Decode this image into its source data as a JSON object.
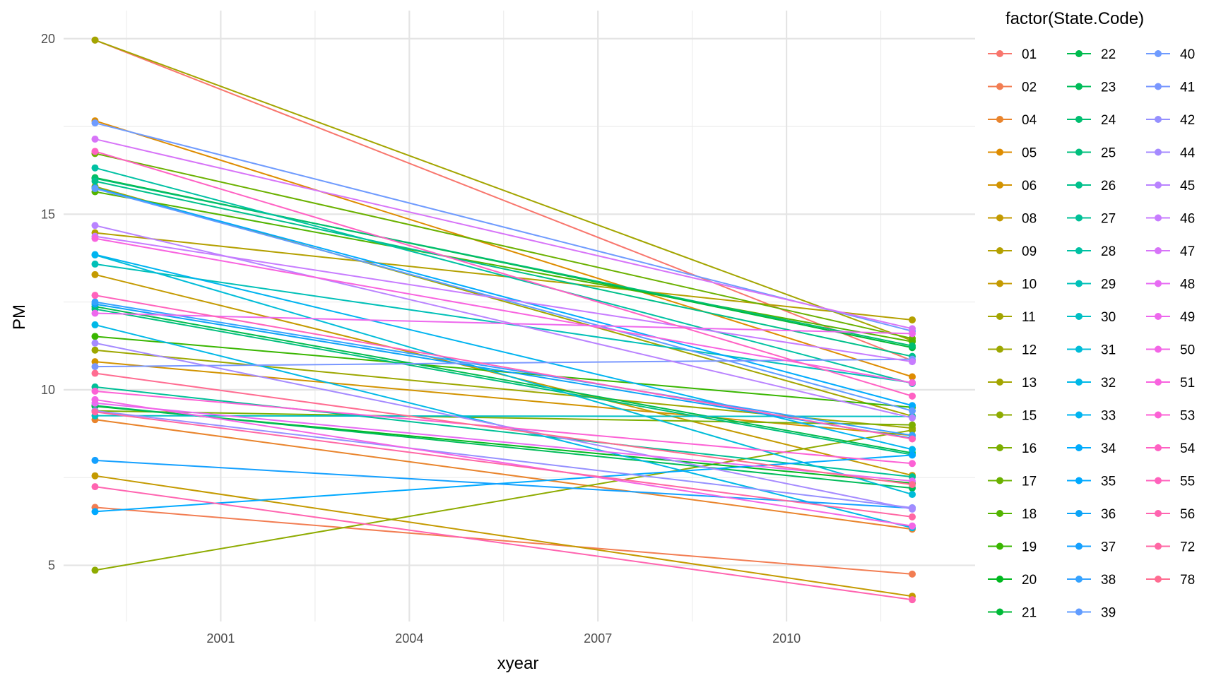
{
  "chart_data": {
    "type": "line",
    "xlabel": "xyear",
    "ylabel": "PM",
    "legend_title": "factor(State.Code)",
    "legend_position": "right",
    "grid": true,
    "xlim": [
      1998.5,
      2013.0
    ],
    "ylim": [
      3.4,
      20.8
    ],
    "x_ticks": [
      2001,
      2004,
      2007,
      2010
    ],
    "x_tick_labels": [
      "2001",
      "2004",
      "2007",
      "2010"
    ],
    "y_ticks": [
      5,
      10,
      15,
      20
    ],
    "y_tick_labels": [
      "5",
      "10",
      "15",
      "20"
    ],
    "x": [
      1999,
      2012
    ],
    "series": [
      {
        "name": "01",
        "color": "#F8766D",
        "values": [
          19.96,
          10.83
        ]
      },
      {
        "name": "02",
        "color": "#F27D52",
        "values": [
          6.65,
          4.75
        ]
      },
      {
        "name": "04",
        "color": "#E9842C",
        "values": [
          9.15,
          6.03
        ]
      },
      {
        "name": "05",
        "color": "#DE8C00",
        "values": [
          17.66,
          10.37
        ]
      },
      {
        "name": "06",
        "color": "#D29300",
        "values": [
          10.8,
          8.7
        ]
      },
      {
        "name": "08",
        "color": "#C49A00",
        "values": [
          7.55,
          4.12
        ]
      },
      {
        "name": "09",
        "color": "#B4A000",
        "values": [
          14.47,
          11.99
        ]
      },
      {
        "name": "10",
        "color": "#C49A00",
        "values": [
          13.28,
          7.56
        ]
      },
      {
        "name": "11",
        "color": "#A3A500",
        "values": [
          15.79,
          9.25
        ]
      },
      {
        "name": "12",
        "color": "#9DA700",
        "values": [
          11.13,
          8.91
        ]
      },
      {
        "name": "13",
        "color": "#A3A500",
        "values": [
          19.96,
          11.4
        ]
      },
      {
        "name": "15",
        "color": "#8EAB00",
        "values": [
          4.86,
          8.85
        ]
      },
      {
        "name": "16",
        "color": "#7CAE00",
        "values": [
          9.4,
          9.0
        ]
      },
      {
        "name": "17",
        "color": "#6BB100",
        "values": [
          16.73,
          11.46
        ]
      },
      {
        "name": "18",
        "color": "#53B400",
        "values": [
          15.64,
          11.37
        ]
      },
      {
        "name": "19",
        "color": "#39B600",
        "values": [
          11.52,
          9.5
        ]
      },
      {
        "name": "20",
        "color": "#00B81F",
        "values": [
          9.53,
          7.34
        ]
      },
      {
        "name": "21",
        "color": "#00BA38",
        "values": [
          16.04,
          11.2
        ]
      },
      {
        "name": "22",
        "color": "#00BB4E",
        "values": [
          12.37,
          8.2
        ]
      },
      {
        "name": "23",
        "color": "#00BC59",
        "values": [
          9.55,
          7.2
        ]
      },
      {
        "name": "24",
        "color": "#00BE70",
        "values": [
          16.02,
          11.25
        ]
      },
      {
        "name": "25",
        "color": "#00BF7D",
        "values": [
          12.3,
          8.15
        ]
      },
      {
        "name": "26",
        "color": "#00C08B",
        "values": [
          15.94,
          10.95
        ]
      },
      {
        "name": "27",
        "color": "#00C097",
        "values": [
          10.08,
          7.52
        ]
      },
      {
        "name": "28",
        "color": "#00C1A3",
        "values": [
          16.32,
          10.18
        ]
      },
      {
        "name": "29",
        "color": "#00C0B8",
        "values": [
          13.58,
          10.2
        ]
      },
      {
        "name": "30",
        "color": "#00BFC4",
        "values": [
          9.26,
          9.24
        ]
      },
      {
        "name": "31",
        "color": "#00BCD8",
        "values": [
          13.84,
          7.02
        ]
      },
      {
        "name": "32",
        "color": "#00B8E7",
        "values": [
          11.85,
          6.07
        ]
      },
      {
        "name": "33",
        "color": "#00B4F0",
        "values": [
          13.85,
          8.3
        ]
      },
      {
        "name": "34",
        "color": "#00ABFD",
        "values": [
          15.75,
          9.55
        ]
      },
      {
        "name": "35",
        "color": "#00A9FF",
        "values": [
          6.53,
          8.14
        ]
      },
      {
        "name": "36",
        "color": "#0CA3F6",
        "values": [
          12.44,
          8.62
        ]
      },
      {
        "name": "37",
        "color": "#14A0FF",
        "values": [
          7.99,
          6.63
        ]
      },
      {
        "name": "38",
        "color": "#35A2FF",
        "values": [
          12.5,
          8.7
        ]
      },
      {
        "name": "39",
        "color": "#619CFF",
        "values": [
          15.73,
          9.4
        ]
      },
      {
        "name": "40",
        "color": "#6F9BFE",
        "values": [
          17.6,
          11.67
        ]
      },
      {
        "name": "41",
        "color": "#7997FF",
        "values": [
          10.66,
          10.87
        ]
      },
      {
        "name": "42",
        "color": "#9590FF",
        "values": [
          9.4,
          6.64
        ]
      },
      {
        "name": "44",
        "color": "#A58AFF",
        "values": [
          11.33,
          6.6
        ]
      },
      {
        "name": "45",
        "color": "#B983FF",
        "values": [
          14.68,
          9.2
        ]
      },
      {
        "name": "46",
        "color": "#C77CFF",
        "values": [
          14.37,
          10.8
        ]
      },
      {
        "name": "47",
        "color": "#D774F8",
        "values": [
          17.14,
          11.74
        ]
      },
      {
        "name": "48",
        "color": "#E76BF3",
        "values": [
          9.62,
          7.4
        ]
      },
      {
        "name": "49",
        "color": "#ED68ED",
        "values": [
          12.18,
          11.6
        ]
      },
      {
        "name": "50",
        "color": "#F365E6",
        "values": [
          9.72,
          6.12
        ]
      },
      {
        "name": "51",
        "color": "#F863DF",
        "values": [
          14.31,
          10.2
        ]
      },
      {
        "name": "53",
        "color": "#FC61D5",
        "values": [
          9.96,
          7.9
        ]
      },
      {
        "name": "54",
        "color": "#FF61C3",
        "values": [
          16.79,
          9.82
        ]
      },
      {
        "name": "55",
        "color": "#FF62BC",
        "values": [
          12.69,
          8.6
        ]
      },
      {
        "name": "56",
        "color": "#FF64B0",
        "values": [
          7.24,
          4.02
        ]
      },
      {
        "name": "72",
        "color": "#FF67A4",
        "values": [
          9.37,
          6.38
        ]
      },
      {
        "name": "78",
        "color": "#FF6C91",
        "values": [
          10.47,
          7.3
        ]
      }
    ]
  }
}
